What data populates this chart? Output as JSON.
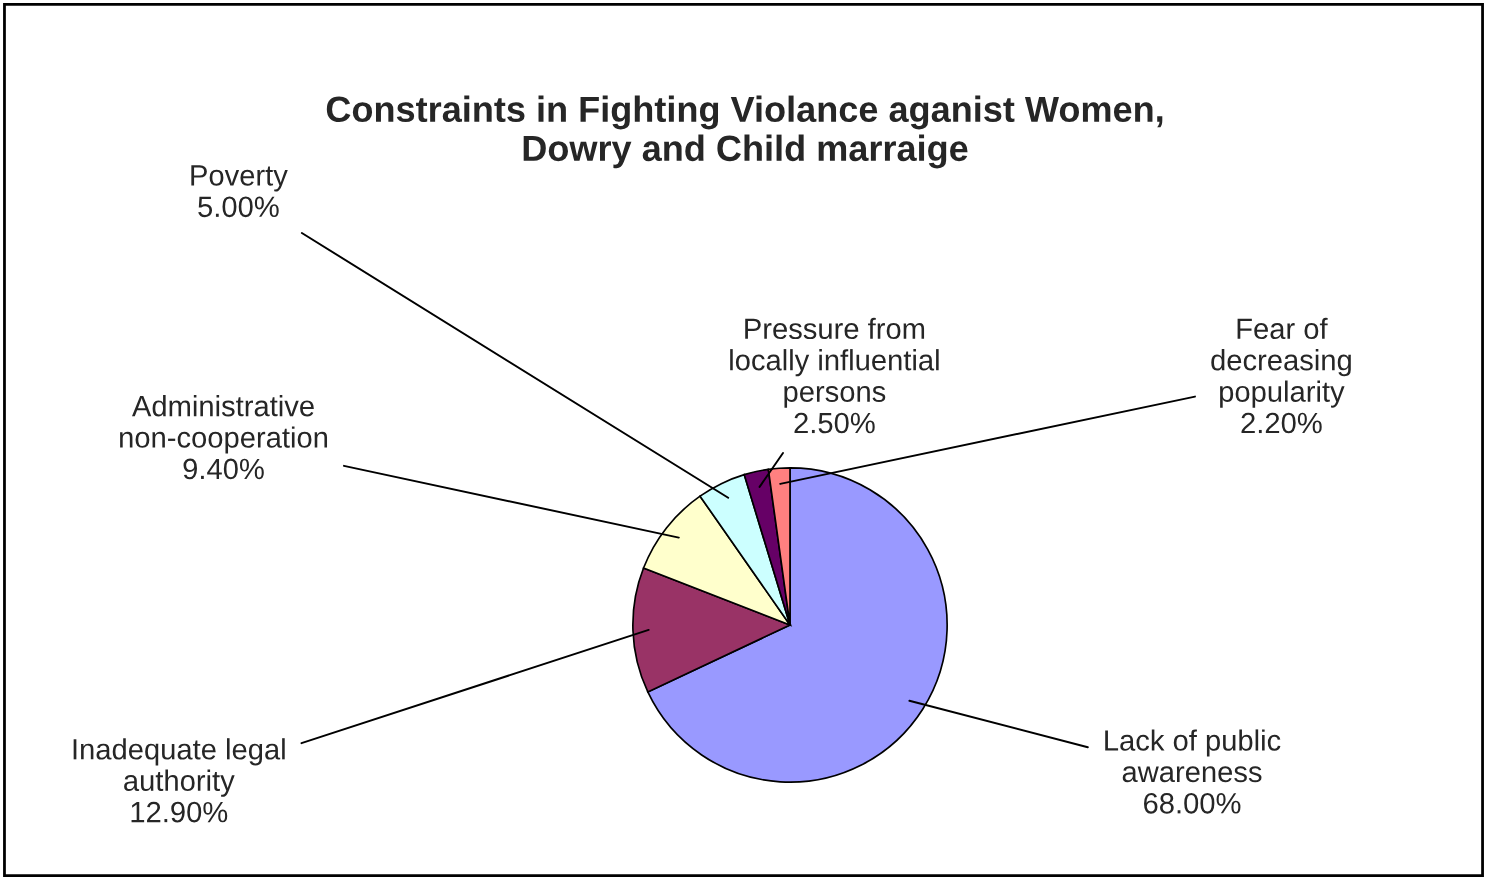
{
  "chart_data": {
    "type": "pie",
    "title": "Constraints in Fighting Violance aganist Women,\nDowry and Child marraige",
    "categories": [
      "Lack of public\nawareness",
      "Inadequate legal\nauthority",
      "Administrative\nnon-cooperation",
      "Poverty",
      "Pressure from\nlocally influential\npersons",
      "Fear of\ndecreasing\npopularity"
    ],
    "values": [
      68.0,
      12.9,
      9.4,
      5.0,
      2.5,
      2.2
    ],
    "value_labels": [
      "68.00%",
      "12.90%",
      "9.40%",
      "5.00%",
      "2.50%",
      "2.20%"
    ],
    "colors": [
      "#9999ff",
      "#993366",
      "#ffffcc",
      "#ccffff",
      "#660066",
      "#ff8080"
    ],
    "legend": false
  }
}
